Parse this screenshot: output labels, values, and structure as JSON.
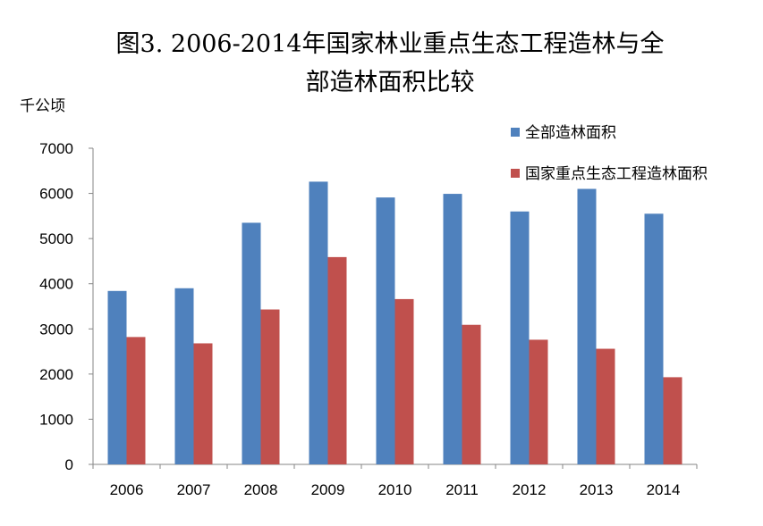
{
  "chart_data": {
    "type": "bar",
    "title_line1": "图3. 2006-2014年国家林业重点生态工程造林与全",
    "title_line2": "部造林面积比较",
    "ylabel": "千公顷",
    "xlabel": "",
    "categories": [
      "2006",
      "2007",
      "2008",
      "2009",
      "2010",
      "2011",
      "2012",
      "2013",
      "2014"
    ],
    "ylim": [
      0,
      7000
    ],
    "yticks": [
      "0",
      "1000",
      "2000",
      "3000",
      "4000",
      "5000",
      "6000",
      "7000"
    ],
    "grid": false,
    "legend_position": "top-right",
    "series": [
      {
        "name": "全部造林面积",
        "color": "#4f81bd",
        "values": [
          3840,
          3900,
          5350,
          6260,
          5910,
          5990,
          5600,
          6100,
          5550
        ]
      },
      {
        "name": "国家重点生态工程造林面积",
        "color": "#c0504d",
        "values": [
          2820,
          2680,
          3430,
          4590,
          3660,
          3090,
          2760,
          2560,
          1930
        ]
      }
    ]
  }
}
